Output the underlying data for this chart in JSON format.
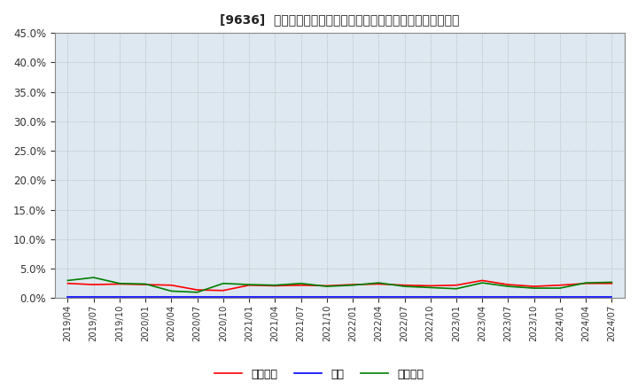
{
  "title": "[9636]  売上債権、在庫、買入債務の総資産に対する比率の推移",
  "ylim": [
    0.0,
    0.45
  ],
  "yticks": [
    0.0,
    0.05,
    0.1,
    0.15,
    0.2,
    0.25,
    0.3,
    0.35,
    0.4,
    0.45
  ],
  "background_color": "#ffffff",
  "plot_bg_color": "#dde8f0",
  "grid_color": "#888888",
  "legend_labels": [
    "売上債権",
    "在庫",
    "買入債務"
  ],
  "legend_colors": [
    "#ff0000",
    "#0000ff",
    "#008000"
  ],
  "x_labels": [
    "2019/04",
    "2019/07",
    "2019/10",
    "2020/01",
    "2020/04",
    "2020/07",
    "2020/10",
    "2021/01",
    "2021/04",
    "2021/07",
    "2021/10",
    "2022/01",
    "2022/04",
    "2022/07",
    "2022/10",
    "2023/01",
    "2023/04",
    "2023/07",
    "2023/10",
    "2024/01",
    "2024/04",
    "2024/07"
  ],
  "series_urikake": [
    0.025,
    0.023,
    0.024,
    0.023,
    0.022,
    0.014,
    0.013,
    0.022,
    0.021,
    0.022,
    0.021,
    0.023,
    0.024,
    0.022,
    0.021,
    0.022,
    0.03,
    0.023,
    0.02,
    0.022,
    0.025,
    0.025
  ],
  "series_zaiko": [
    0.002,
    0.002,
    0.002,
    0.002,
    0.002,
    0.002,
    0.002,
    0.002,
    0.002,
    0.002,
    0.002,
    0.002,
    0.002,
    0.002,
    0.002,
    0.002,
    0.002,
    0.002,
    0.002,
    0.002,
    0.002,
    0.002
  ],
  "series_kaiire": [
    0.03,
    0.035,
    0.025,
    0.024,
    0.012,
    0.01,
    0.025,
    0.023,
    0.022,
    0.025,
    0.02,
    0.022,
    0.026,
    0.02,
    0.018,
    0.016,
    0.026,
    0.02,
    0.017,
    0.017,
    0.026,
    0.027
  ]
}
